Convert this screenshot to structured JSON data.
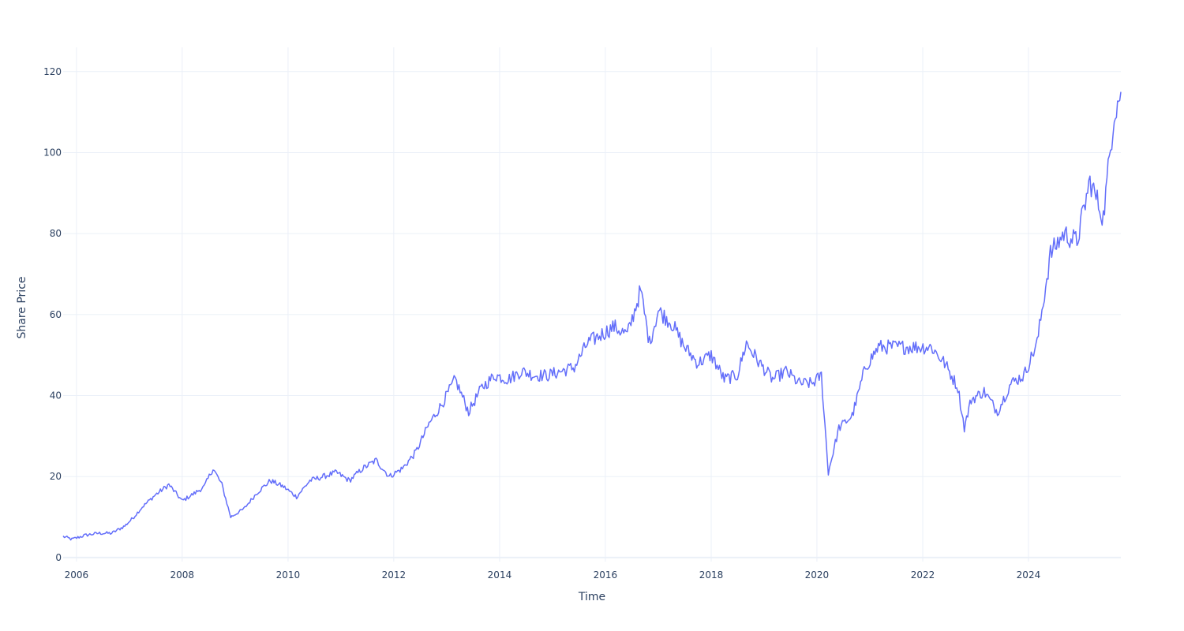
{
  "chart_data": {
    "type": "line",
    "title": "",
    "xlabel": "Time",
    "ylabel": "Share Price",
    "x_range": [
      "2005-10-01",
      "2025-09-30"
    ],
    "ylim": [
      -1,
      126
    ],
    "x_ticks": [
      "2006",
      "2008",
      "2010",
      "2012",
      "2014",
      "2016",
      "2018",
      "2020",
      "2022",
      "2024"
    ],
    "y_ticks": [
      0,
      20,
      40,
      60,
      80,
      100,
      120
    ],
    "grid": true,
    "legend": "none",
    "colors": {
      "line": "#636efa",
      "grid": "#ebf0f8",
      "zeroline": "#ebf0f8",
      "text": "#2a3f5f"
    },
    "series": [
      {
        "x": [
          "2005-10-01",
          "2005-12-01",
          "2006-03-01",
          "2006-06-01",
          "2006-09-01",
          "2006-12-01",
          "2007-02-01",
          "2007-04-01",
          "2007-07-01",
          "2007-10-01",
          "2008-01-01",
          "2008-04-01",
          "2008-06-01",
          "2008-08-01",
          "2008-10-01",
          "2008-12-01",
          "2009-03-01",
          "2009-06-01",
          "2009-09-01",
          "2009-12-01",
          "2010-03-01",
          "2010-06-01",
          "2010-09-01",
          "2010-12-01",
          "2011-03-01",
          "2011-06-01",
          "2011-09-01",
          "2011-12-01",
          "2012-03-01",
          "2012-06-01",
          "2012-09-01",
          "2012-12-01",
          "2013-03-01",
          "2013-06-01",
          "2013-09-01",
          "2013-12-01",
          "2014-03-01",
          "2014-06-01",
          "2014-09-01",
          "2014-12-01",
          "2015-03-01",
          "2015-06-01",
          "2015-09-01",
          "2015-12-01",
          "2016-03-01",
          "2016-06-01",
          "2016-09-01",
          "2016-11-01",
          "2017-01-01",
          "2017-04-01",
          "2017-07-01",
          "2017-10-01",
          "2018-01-01",
          "2018-04-01",
          "2018-07-01",
          "2018-09-01",
          "2018-12-01",
          "2019-03-01",
          "2019-06-01",
          "2019-09-01",
          "2019-12-01",
          "2020-02-01",
          "2020-03-20",
          "2020-06-01",
          "2020-09-01",
          "2020-12-01",
          "2021-03-01",
          "2021-06-01",
          "2021-09-01",
          "2021-12-01",
          "2022-03-01",
          "2022-06-01",
          "2022-09-01",
          "2022-10-15",
          "2022-12-01",
          "2023-03-01",
          "2023-06-01",
          "2023-09-01",
          "2023-12-01",
          "2024-03-01",
          "2024-06-01",
          "2024-09-01",
          "2024-12-01",
          "2025-03-01",
          "2025-06-01",
          "2025-08-15",
          "2025-09-30"
        ],
        "y": [
          5.2,
          4.5,
          5.5,
          6,
          6,
          7.8,
          10,
          12.5,
          15.5,
          18,
          14,
          16,
          17.5,
          22,
          18,
          10,
          12,
          16,
          19,
          17.5,
          15,
          19,
          20,
          21,
          19,
          22,
          24,
          20,
          22,
          26,
          33,
          38,
          44,
          36,
          42,
          45,
          44,
          46,
          45,
          45,
          46,
          47,
          53,
          55,
          57,
          55,
          66,
          53,
          61,
          58,
          52,
          48,
          50,
          44,
          45,
          53,
          48,
          44,
          46,
          43,
          43,
          45,
          21,
          32,
          35,
          47,
          52,
          52,
          52,
          52,
          52,
          48,
          42,
          32,
          39,
          41,
          36,
          43,
          45,
          53,
          75,
          80,
          78,
          93,
          84,
          110,
          115
        ]
      }
    ]
  }
}
